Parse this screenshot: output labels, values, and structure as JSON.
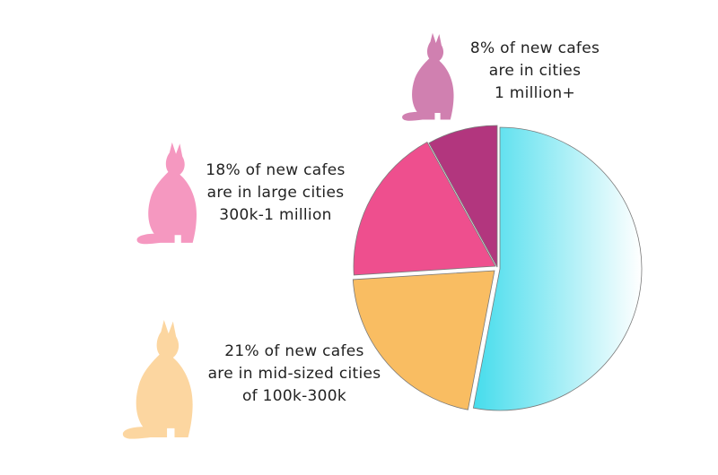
{
  "colors": {
    "large_cities_1m": "#b2367e",
    "large_cities_300k": "#ee4f8e",
    "mid_sized_cities": "#f9bd62",
    "other_start": "#45dcec",
    "other_end": "#ffffff",
    "cat_1m": "#d080b0",
    "cat_300k": "#f598c0",
    "cat_100k": "#fcd6a0"
  },
  "icons": [
    "cat-icon"
  ],
  "chart_data": {
    "type": "pie",
    "title": "",
    "slices": [
      {
        "label_lines": [
          "8%  of new cafes",
          "are in cities",
          "1 million+"
        ],
        "value": 8,
        "color": "#b2367e"
      },
      {
        "label_lines": [
          "18% of new cafes",
          "are in large cities",
          "300k-1 million"
        ],
        "value": 18,
        "color": "#ee4f8e"
      },
      {
        "label_lines": [
          "21% of new cafes",
          "are in mid-sized cities",
          "of 100k-300k"
        ],
        "value": 21,
        "color": "#f9bd62"
      },
      {
        "label_lines": [],
        "value": 53,
        "color": "#45dcec"
      }
    ]
  }
}
